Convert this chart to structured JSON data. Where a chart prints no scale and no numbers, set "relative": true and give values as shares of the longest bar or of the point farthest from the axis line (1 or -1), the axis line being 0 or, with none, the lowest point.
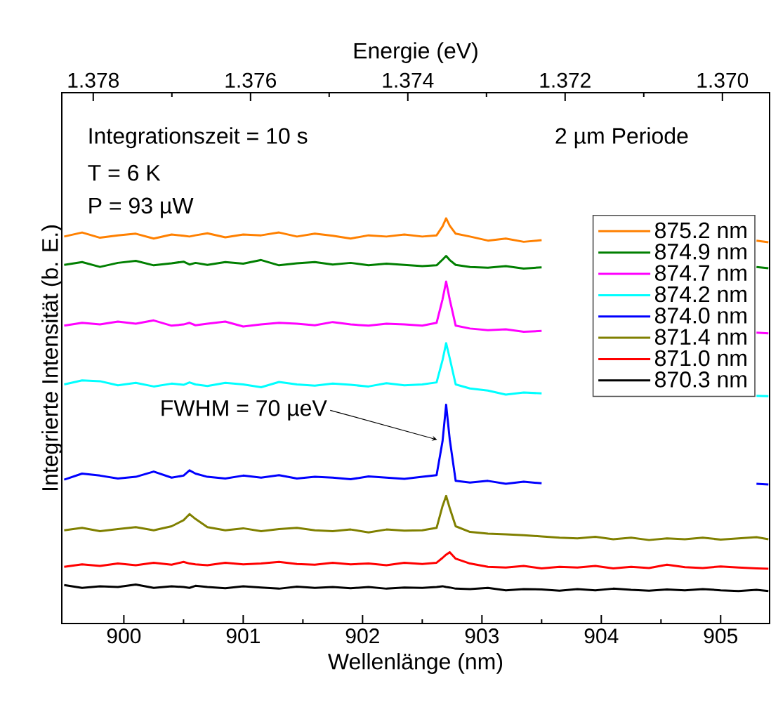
{
  "chart_data": {
    "type": "line",
    "relative": true,
    "xlabel": "Wellenlänge (nm)",
    "ylabel": "Integrierte Intensität (b. E.)",
    "x2label": "Energie (eV)",
    "xlim": [
      899.48,
      905.41
    ],
    "xticks": [
      900,
      901,
      902,
      903,
      904,
      905
    ],
    "x2lim": [
      1.3784,
      1.3694
    ],
    "x2ticks": [
      1.378,
      1.376,
      1.374,
      1.372,
      {
        "value": 1.37,
        "label": "1.370"
      }
    ],
    "legend": "right",
    "marker": "none",
    "line_style": "solid",
    "grid": false,
    "annotations": [
      "Integrationszeit = 10 s",
      "T = 6 K",
      "P = 93 µW",
      "2 µm Periode",
      {
        "text": "FWHM = 70 µeV",
        "x": 902.67,
        "y": 0.45
      }
    ],
    "x": [
      899.5,
      899.65,
      899.8,
      899.95,
      900.1,
      900.25,
      900.4,
      900.5,
      900.55,
      900.6,
      900.7,
      900.85,
      901.0,
      901.15,
      901.3,
      901.45,
      901.6,
      901.75,
      901.9,
      902.05,
      902.2,
      902.35,
      902.5,
      902.62,
      902.67,
      902.7,
      902.73,
      902.78,
      902.9,
      903.05,
      903.2,
      903.35,
      903.5,
      903.65,
      903.8,
      903.95,
      904.1,
      904.25,
      904.4,
      904.55,
      904.7,
      904.85,
      905.0,
      905.15,
      905.3,
      905.4
    ],
    "series": [
      {
        "name": "875.2 nm",
        "color": "#ff8000",
        "values": [
          0.955,
          0.965,
          0.952,
          0.958,
          0.962,
          0.95,
          0.96,
          0.957,
          0.955,
          0.958,
          0.963,
          0.953,
          0.96,
          0.958,
          0.965,
          0.955,
          0.962,
          0.957,
          0.95,
          0.958,
          0.955,
          0.96,
          0.955,
          0.958,
          0.98,
          1.0,
          0.982,
          0.962,
          0.955,
          0.945,
          0.95,
          0.942,
          0.946,
          null,
          null,
          null,
          null,
          null,
          null,
          null,
          null,
          null,
          null,
          null,
          0.945,
          0.941
        ]
      },
      {
        "name": "874.9 nm",
        "color": "#007f00",
        "values": [
          0.885,
          0.892,
          0.88,
          0.89,
          0.895,
          0.884,
          0.889,
          0.893,
          0.886,
          0.89,
          0.885,
          0.892,
          0.888,
          0.897,
          0.884,
          0.889,
          0.892,
          0.886,
          0.89,
          0.884,
          0.888,
          0.885,
          0.882,
          0.884,
          0.898,
          0.907,
          0.897,
          0.885,
          0.88,
          0.878,
          0.882,
          0.876,
          0.879,
          null,
          null,
          null,
          null,
          null,
          null,
          null,
          null,
          null,
          null,
          null,
          0.88,
          0.877
        ]
      },
      {
        "name": "874.7 nm",
        "color": "#ff00ff",
        "values": [
          0.735,
          0.742,
          0.738,
          0.745,
          0.74,
          0.748,
          0.735,
          0.738,
          0.742,
          0.736,
          0.74,
          0.745,
          0.733,
          0.738,
          0.742,
          0.74,
          0.736,
          0.744,
          0.738,
          0.735,
          0.74,
          0.738,
          0.735,
          0.742,
          0.8,
          0.844,
          0.8,
          0.735,
          0.728,
          0.724,
          0.726,
          0.72,
          0.722,
          null,
          null,
          null,
          null,
          null,
          null,
          null,
          null,
          null,
          null,
          null,
          0.718,
          0.716
        ]
      },
      {
        "name": "874.2 nm",
        "color": "#00ffff",
        "values": [
          0.59,
          0.6,
          0.598,
          0.588,
          0.594,
          0.585,
          0.592,
          0.589,
          0.595,
          0.59,
          0.586,
          0.594,
          0.59,
          0.583,
          0.596,
          0.59,
          0.587,
          0.592,
          0.589,
          0.585,
          0.593,
          0.588,
          0.59,
          0.595,
          0.65,
          0.692,
          0.655,
          0.59,
          0.58,
          0.575,
          0.565,
          0.57,
          0.568,
          null,
          null,
          null,
          null,
          null,
          null,
          null,
          null,
          null,
          null,
          null,
          0.562,
          0.561
        ]
      },
      {
        "name": "874.0 nm",
        "color": "#0000ff",
        "values": [
          0.355,
          0.37,
          0.365,
          0.358,
          0.362,
          0.375,
          0.36,
          0.365,
          0.378,
          0.37,
          0.362,
          0.358,
          0.365,
          0.36,
          0.366,
          0.358,
          0.362,
          0.36,
          0.356,
          0.363,
          0.36,
          0.357,
          0.362,
          0.366,
          0.45,
          0.54,
          0.455,
          0.352,
          0.348,
          0.352,
          0.345,
          0.35,
          0.346,
          null,
          null,
          null,
          null,
          null,
          null,
          null,
          null,
          null,
          null,
          null,
          0.345,
          0.343
        ]
      },
      {
        "name": "871.4 nm",
        "color": "#808000",
        "values": [
          0.23,
          0.236,
          0.228,
          0.233,
          0.238,
          0.23,
          0.24,
          0.255,
          0.27,
          0.258,
          0.238,
          0.23,
          0.235,
          0.228,
          0.233,
          0.236,
          0.23,
          0.228,
          0.232,
          0.225,
          0.232,
          0.229,
          0.23,
          0.236,
          0.29,
          0.315,
          0.285,
          0.24,
          0.226,
          0.222,
          0.22,
          0.218,
          0.215,
          0.212,
          0.21,
          0.214,
          0.208,
          0.212,
          0.206,
          0.21,
          0.208,
          0.212,
          0.207,
          0.21,
          0.213,
          0.208
        ]
      },
      {
        "name": "871.0 nm",
        "color": "#ff0000",
        "values": [
          0.14,
          0.146,
          0.142,
          0.148,
          0.144,
          0.15,
          0.145,
          0.152,
          0.148,
          0.146,
          0.144,
          0.15,
          0.146,
          0.148,
          0.152,
          0.147,
          0.145,
          0.15,
          0.146,
          0.148,
          0.144,
          0.15,
          0.147,
          0.15,
          0.162,
          0.17,
          0.176,
          0.16,
          0.148,
          0.14,
          0.138,
          0.142,
          0.136,
          0.14,
          0.138,
          0.142,
          0.136,
          0.14,
          0.137,
          0.145,
          0.139,
          0.137,
          0.141,
          0.138,
          0.136,
          0.135
        ]
      },
      {
        "name": "870.3 nm",
        "color": "#000000",
        "values": [
          0.095,
          0.088,
          0.092,
          0.09,
          0.096,
          0.088,
          0.092,
          0.09,
          0.088,
          0.093,
          0.09,
          0.087,
          0.092,
          0.089,
          0.086,
          0.091,
          0.088,
          0.09,
          0.087,
          0.09,
          0.086,
          0.089,
          0.088,
          0.09,
          0.092,
          0.09,
          0.089,
          0.086,
          0.085,
          0.088,
          0.082,
          0.085,
          0.084,
          0.081,
          0.085,
          0.082,
          0.086,
          0.083,
          0.081,
          0.084,
          0.082,
          0.085,
          0.082,
          0.08,
          0.083,
          0.08
        ]
      }
    ]
  }
}
